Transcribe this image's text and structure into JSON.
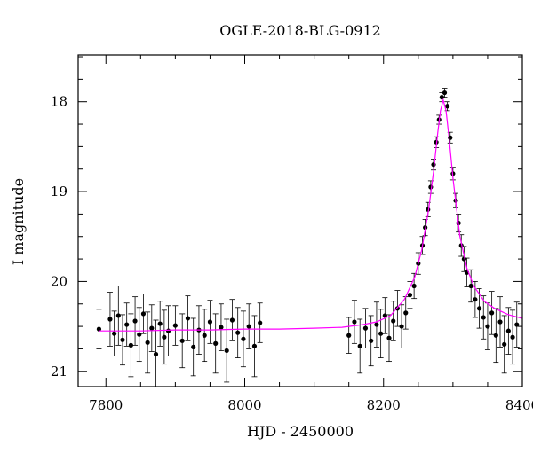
{
  "chart_data": {
    "type": "scatter",
    "title": "OGLE-2018-BLG-0912",
    "xlabel": "HJD - 2450000",
    "ylabel": "I magnitude",
    "xlim": [
      7760,
      8400
    ],
    "ylim": [
      21.17,
      17.48
    ],
    "y_inverted": true,
    "xticks": [
      7800,
      8000,
      8200,
      8400
    ],
    "yticks": [
      18,
      19,
      20,
      21
    ],
    "grid": false,
    "legend": "none",
    "colors": {
      "points": "#000000",
      "errorbars": "#000000",
      "model": "#ff00ff"
    },
    "series": [
      {
        "kind": "observations",
        "style": "points-with-errorbars",
        "x": [
          7790,
          7806,
          7812,
          7818,
          7824,
          7830,
          7836,
          7842,
          7848,
          7854,
          7860,
          7866,
          7872,
          7878,
          7884,
          7890,
          7900,
          7910,
          7918,
          7926,
          7934,
          7942,
          7950,
          7958,
          7966,
          7974,
          7982,
          7990,
          7998,
          8006,
          8014,
          8022,
          8150,
          8158,
          8166,
          8174,
          8182,
          8190,
          8196,
          8202,
          8208,
          8214,
          8220,
          8226,
          8232,
          8238,
          8244,
          8250,
          8256,
          8260,
          8264,
          8268,
          8272,
          8276,
          8280,
          8284,
          8288,
          8292,
          8296,
          8300,
          8304,
          8308,
          8312,
          8316,
          8320,
          8326,
          8332,
          8338,
          8344,
          8350,
          8356,
          8362,
          8368,
          8374,
          8380,
          8386,
          8392
        ],
        "y": [
          20.53,
          20.42,
          20.58,
          20.38,
          20.65,
          20.48,
          20.71,
          20.44,
          20.59,
          20.36,
          20.68,
          20.52,
          20.81,
          20.47,
          20.62,
          20.55,
          20.49,
          20.66,
          20.41,
          20.73,
          20.54,
          20.6,
          20.45,
          20.69,
          20.51,
          20.77,
          20.43,
          20.57,
          20.64,
          20.5,
          20.72,
          20.46,
          20.6,
          20.45,
          20.72,
          20.52,
          20.66,
          20.48,
          20.58,
          20.38,
          20.63,
          20.44,
          20.3,
          20.5,
          20.35,
          20.15,
          20.05,
          19.8,
          19.6,
          19.4,
          19.2,
          18.95,
          18.7,
          18.45,
          18.2,
          17.95,
          17.9,
          18.05,
          18.4,
          18.8,
          19.1,
          19.35,
          19.6,
          19.75,
          19.9,
          20.05,
          20.2,
          20.3,
          20.4,
          20.5,
          20.35,
          20.6,
          20.45,
          20.7,
          20.55,
          20.62,
          20.48
        ],
        "err": [
          0.22,
          0.3,
          0.25,
          0.33,
          0.28,
          0.24,
          0.35,
          0.27,
          0.3,
          0.22,
          0.34,
          0.26,
          0.38,
          0.25,
          0.3,
          0.28,
          0.22,
          0.3,
          0.25,
          0.32,
          0.27,
          0.29,
          0.24,
          0.33,
          0.26,
          0.35,
          0.23,
          0.28,
          0.31,
          0.25,
          0.34,
          0.22,
          0.2,
          0.24,
          0.3,
          0.22,
          0.28,
          0.25,
          0.27,
          0.2,
          0.26,
          0.22,
          0.2,
          0.24,
          0.18,
          0.15,
          0.14,
          0.12,
          0.1,
          0.09,
          0.08,
          0.07,
          0.06,
          0.06,
          0.05,
          0.05,
          0.05,
          0.05,
          0.06,
          0.07,
          0.08,
          0.1,
          0.12,
          0.14,
          0.16,
          0.18,
          0.2,
          0.22,
          0.24,
          0.26,
          0.24,
          0.3,
          0.28,
          0.32,
          0.26,
          0.3,
          0.25
        ]
      },
      {
        "kind": "model",
        "style": "line",
        "x": [
          7790,
          7850,
          7900,
          7950,
          8000,
          8050,
          8100,
          8140,
          8170,
          8190,
          8210,
          8230,
          8245,
          8255,
          8265,
          8272,
          8278,
          8282,
          8286,
          8290,
          8295,
          8300,
          8310,
          8320,
          8330,
          8345,
          8360,
          8380,
          8400
        ],
        "y": [
          20.55,
          20.55,
          20.54,
          20.54,
          20.53,
          20.53,
          20.52,
          20.51,
          20.48,
          20.45,
          20.38,
          20.2,
          19.95,
          19.65,
          19.2,
          18.78,
          18.35,
          18.1,
          17.98,
          18.1,
          18.45,
          18.85,
          19.5,
          19.85,
          20.05,
          20.22,
          20.3,
          20.37,
          20.41
        ]
      }
    ]
  }
}
